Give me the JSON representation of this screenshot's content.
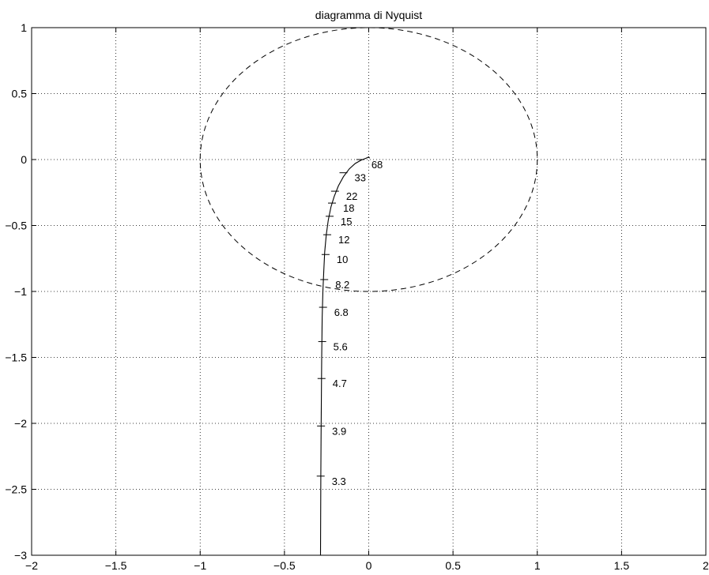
{
  "chart_data": {
    "type": "line",
    "title": "diagramma di Nyquist",
    "xlabel": "",
    "ylabel": "",
    "xlim": [
      -2,
      2
    ],
    "ylim": [
      -3,
      1
    ],
    "grid": true,
    "x_ticks": [
      -2,
      -1.5,
      -1,
      -0.5,
      0,
      0.5,
      1,
      1.5,
      2
    ],
    "y_ticks": [
      -3,
      -2.5,
      -2,
      -1.5,
      -1,
      -0.5,
      0,
      0.5,
      1
    ],
    "x_tick_labels": [
      "−2",
      "−1.5",
      "−1",
      "−0.5",
      "0",
      "0.5",
      "1",
      "1.5",
      "2"
    ],
    "y_tick_labels": [
      "−3",
      "−2.5",
      "−2",
      "−1.5",
      "−1",
      "−0.5",
      "0",
      "0.5",
      "1"
    ],
    "unit_circle": {
      "center": [
        0,
        0
      ],
      "radius": 1,
      "style": "dashed"
    },
    "nyquist_curve": {
      "x": [
        -0.286,
        -0.285,
        -0.284,
        -0.283,
        -0.281,
        -0.279,
        -0.276,
        -0.272,
        -0.267,
        -0.261,
        -0.252,
        -0.24,
        -0.224,
        -0.205,
        -0.18,
        -0.15,
        -0.115,
        -0.08,
        -0.045,
        -0.015,
        0.0,
        0.005
      ],
      "y": [
        -3.0,
        -2.7,
        -2.4,
        -2.1,
        -1.8,
        -1.5,
        -1.2,
        -1.0,
        -0.85,
        -0.7,
        -0.57,
        -0.46,
        -0.36,
        -0.28,
        -0.2,
        -0.13,
        -0.07,
        -0.03,
        -0.005,
        0.01,
        0.02,
        0.01
      ]
    },
    "frequency_markers": [
      {
        "label": "3.3",
        "x": -0.285,
        "y": -2.4
      },
      {
        "label": "3.9",
        "x": -0.283,
        "y": -2.02
      },
      {
        "label": "4.7",
        "x": -0.28,
        "y": -1.66
      },
      {
        "label": "5.6",
        "x": -0.276,
        "y": -1.38
      },
      {
        "label": "6.8",
        "x": -0.271,
        "y": -1.12
      },
      {
        "label": "8.2",
        "x": -0.264,
        "y": -0.91
      },
      {
        "label": "10",
        "x": -0.256,
        "y": -0.72
      },
      {
        "label": "12",
        "x": -0.246,
        "y": -0.57
      },
      {
        "label": "15",
        "x": -0.232,
        "y": -0.43
      },
      {
        "label": "18",
        "x": -0.218,
        "y": -0.33
      },
      {
        "label": "22",
        "x": -0.2,
        "y": -0.24
      },
      {
        "label": "33",
        "x": -0.15,
        "y": -0.1
      },
      {
        "label": "68",
        "x": -0.05,
        "y": 0.0
      }
    ]
  }
}
